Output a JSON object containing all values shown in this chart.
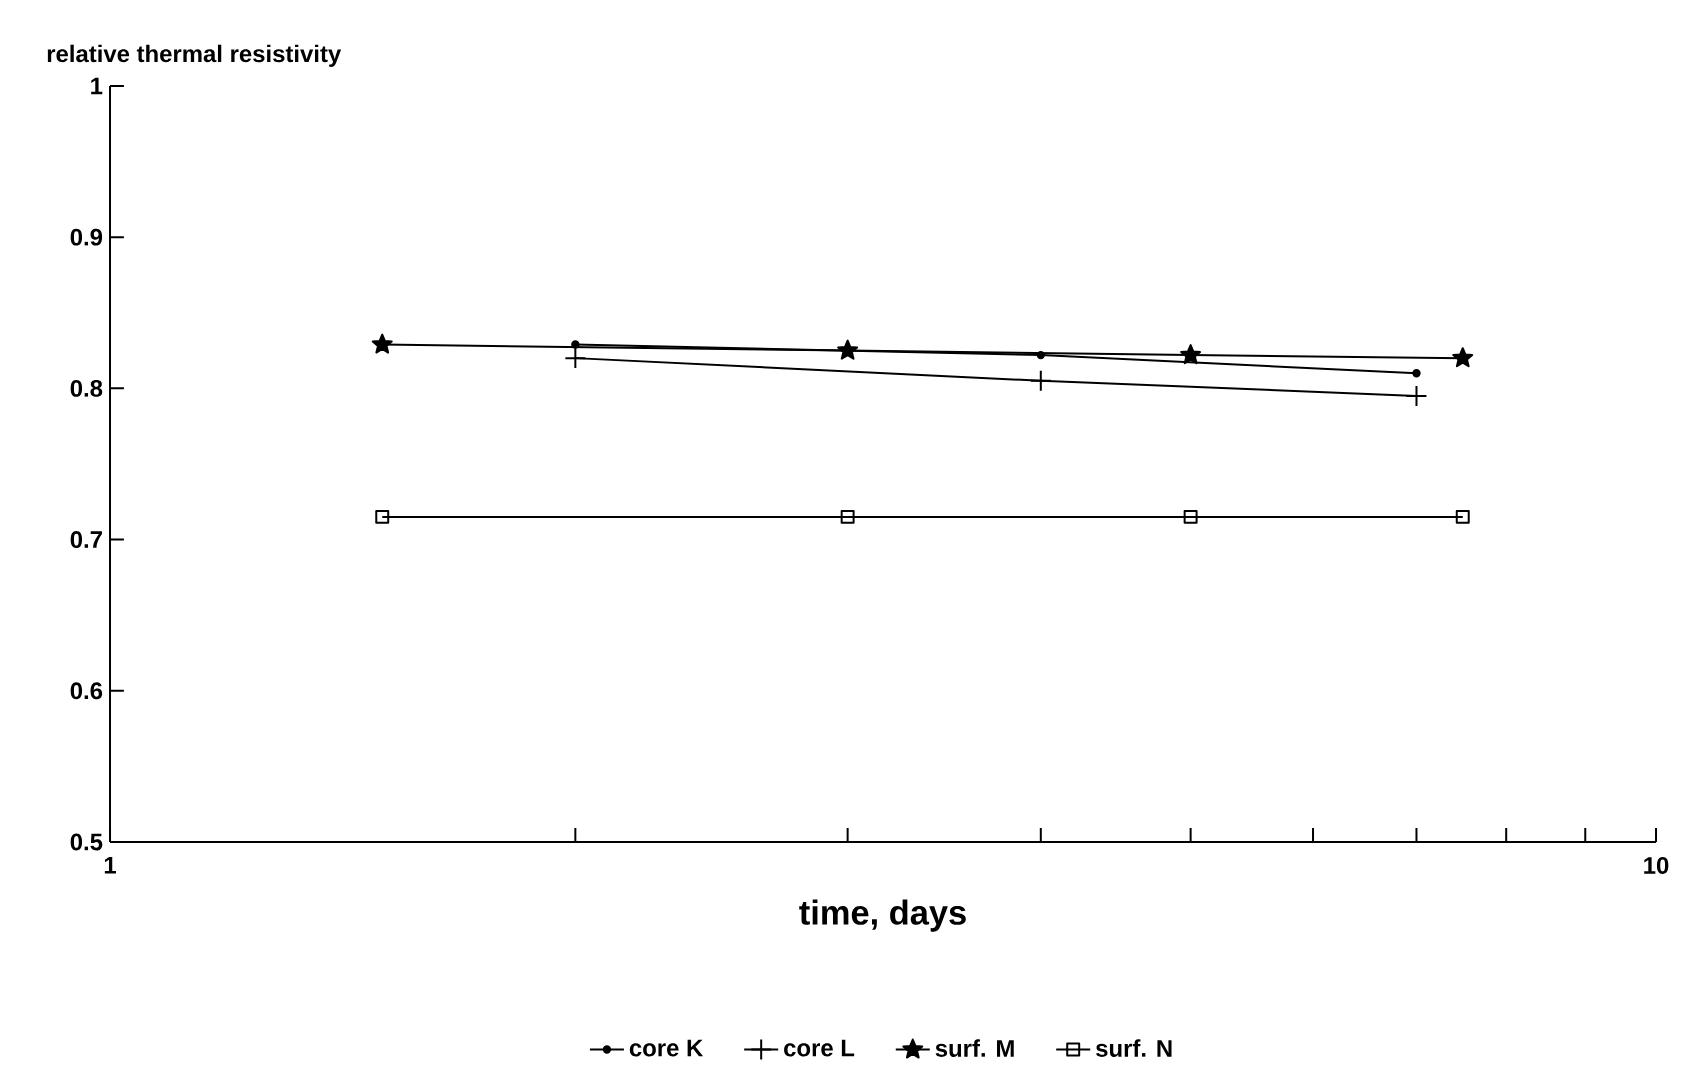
{
  "chart_data": {
    "type": "line",
    "ylabel": "relative thermal resistivity",
    "xlabel": "time, days",
    "log": "x",
    "xlim": [
      1,
      10
    ],
    "xticks": [
      1,
      {
        "value": 2,
        "label": null
      },
      {
        "value": 3,
        "label": null
      },
      {
        "value": 4,
        "label": null
      },
      {
        "value": 5,
        "label": null
      },
      {
        "value": 6,
        "label": null
      },
      {
        "value": 7,
        "label": null
      },
      {
        "value": 8,
        "label": null
      },
      {
        "value": 9,
        "label": null
      },
      10
    ],
    "ylim": [
      0.5,
      1
    ],
    "yticks": [
      0.5,
      0.6,
      0.7,
      0.8,
      0.9,
      1
    ],
    "grid": false,
    "legend": "bottom",
    "line_style": "solid",
    "series": [
      {
        "name": "core K",
        "color": "#000000",
        "marker": "circle",
        "x": [
          2,
          4,
          7
        ],
        "values": [
          0.829,
          0.822,
          0.81
        ]
      },
      {
        "name": "core L",
        "color": "#000000",
        "marker": "cross",
        "x": [
          2,
          4,
          7
        ],
        "values": [
          0.82,
          0.805,
          0.795
        ]
      },
      {
        "name": "surf. M",
        "color": "#000000",
        "marker": "star",
        "x": [
          1.5,
          3,
          5,
          7.5
        ],
        "values": [
          0.829,
          0.825,
          0.822,
          0.82
        ]
      },
      {
        "name": "surf. N",
        "color": "#000000",
        "marker": "square",
        "x": [
          1.5,
          3,
          5,
          7.5
        ],
        "values": [
          0.715,
          0.715,
          0.715,
          0.715
        ]
      }
    ]
  }
}
